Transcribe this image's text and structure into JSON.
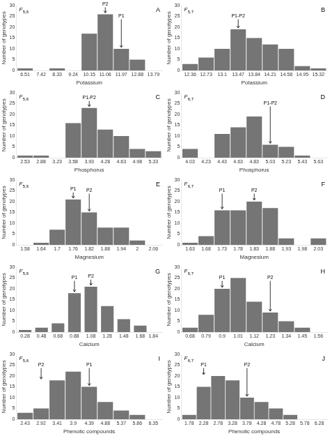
{
  "chart_data": [
    {
      "type": "bar",
      "title": "A",
      "subtitle": "F5,6",
      "xlabel": "Potassium",
      "ylabel": "Number of genotypes",
      "x": [
        6.51,
        7.42,
        8.33,
        9.24,
        10.15,
        11.06,
        11.97,
        12.88,
        13.79
      ],
      "values": [
        1,
        0,
        1,
        0,
        17,
        26,
        10,
        5,
        0
      ],
      "xlim": [
        6.0095,
        14.2905
      ],
      "xticks": [
        6.51,
        7.42,
        8.33,
        9.24,
        10.15,
        11.06,
        11.97,
        12.88,
        13.79
      ],
      "ylim": [
        0,
        30
      ],
      "yticks": [
        0,
        5,
        10,
        15,
        20,
        25,
        30
      ],
      "grid": false,
      "color": "#757575",
      "annotations": [
        {
          "text": "P2",
          "x": 11.06,
          "y": 26
        },
        {
          "text": "P1",
          "x": 11.97,
          "y": 10
        }
      ]
    },
    {
      "type": "bar",
      "title": "B",
      "subtitle": "F5,7",
      "xlabel": "Potassium",
      "ylabel": "Number of genotypes",
      "x": [
        12.36,
        12.73,
        13.1,
        13.47,
        13.84,
        14.21,
        14.58,
        14.95,
        15.32
      ],
      "values": [
        3,
        6,
        10,
        19,
        15,
        12,
        10,
        2,
        1
      ],
      "xlim": [
        12.1565,
        15.5235
      ],
      "xticks": [
        12.36,
        12.73,
        13.1,
        13.47,
        13.84,
        14.21,
        14.58,
        14.95,
        15.32
      ],
      "ylim": [
        0,
        30
      ],
      "yticks": [
        0,
        5,
        10,
        15,
        20,
        25,
        30
      ],
      "grid": false,
      "color": "#757575",
      "annotations": [
        {
          "text": "P1-P2",
          "x": 13.47,
          "y": 19
        }
      ]
    },
    {
      "type": "bar",
      "title": "C",
      "subtitle": "F5,6",
      "xlabel": "Phosphorus",
      "ylabel": "Number of genotypes",
      "x": [
        2.53,
        2.88,
        3.23,
        3.58,
        3.93,
        4.28,
        4.63,
        4.98,
        5.33
      ],
      "values": [
        1,
        1,
        0,
        16,
        23,
        13,
        10,
        4,
        3
      ],
      "xlim": [
        2.3375,
        5.5225
      ],
      "xticks": [
        2.53,
        2.88,
        3.23,
        3.58,
        3.93,
        4.28,
        4.63,
        4.98,
        5.33
      ],
      "ylim": [
        0,
        30
      ],
      "yticks": [
        0,
        5,
        10,
        15,
        20,
        25,
        30
      ],
      "grid": false,
      "color": "#757575",
      "annotations": [
        {
          "text": "P1-P2",
          "x": 3.93,
          "y": 23
        }
      ]
    },
    {
      "type": "bar",
      "title": "D",
      "subtitle": "F6,7",
      "xlabel": "Phosphorus",
      "ylabel": "Number of genotypes",
      "x": [
        4.03,
        4.23,
        4.43,
        4.63,
        4.83,
        5.03,
        5.23,
        5.43,
        5.63
      ],
      "values": [
        4,
        0,
        11,
        14,
        19,
        6,
        5,
        1,
        0
      ],
      "xlim": [
        3.92,
        5.74
      ],
      "xticks": [
        4.03,
        4.23,
        4.43,
        4.63,
        4.83,
        5.03,
        5.23,
        5.43,
        5.63
      ],
      "ylim": [
        0,
        30
      ],
      "yticks": [
        0,
        5,
        10,
        15,
        20,
        25,
        30
      ],
      "grid": false,
      "color": "#757575",
      "annotations": [
        {
          "text": "P1-P2",
          "x": 5.03,
          "y": 6
        }
      ]
    },
    {
      "type": "bar",
      "title": "E",
      "subtitle": "F5,6",
      "xlabel": "Magnesium",
      "ylabel": "Number of genotypes",
      "x": [
        1.58,
        1.64,
        1.7,
        1.76,
        1.82,
        1.88,
        1.94,
        2,
        2.06
      ],
      "values": [
        0,
        1,
        7,
        21,
        15,
        8,
        8,
        2,
        0
      ],
      "xlim": [
        1.547,
        2.093
      ],
      "xticks": [
        1.58,
        1.64,
        1.7,
        1.76,
        1.82,
        1.88,
        1.94,
        2,
        2.06
      ],
      "ylim": [
        0,
        30
      ],
      "yticks": [
        0,
        5,
        10,
        15,
        20,
        25,
        30
      ],
      "grid": false,
      "color": "#757575",
      "annotations": [
        {
          "text": "P1",
          "x": 1.76,
          "y": 21
        },
        {
          "text": "P2",
          "x": 1.82,
          "y": 15
        }
      ]
    },
    {
      "type": "bar",
      "title": "F",
      "subtitle": "F6,7",
      "xlabel": "Magnesium",
      "ylabel": "Number of genotypes",
      "x": [
        1.63,
        1.68,
        1.73,
        1.78,
        1.83,
        1.88,
        1.93,
        1.98,
        2.03
      ],
      "values": [
        1,
        4,
        16,
        16,
        20,
        17,
        3,
        0,
        3
      ],
      "xlim": [
        1.6025,
        2.0575
      ],
      "xticks": [
        1.63,
        1.68,
        1.73,
        1.78,
        1.83,
        1.88,
        1.93,
        1.98,
        2.03
      ],
      "ylim": [
        0,
        30
      ],
      "yticks": [
        0,
        5,
        10,
        15,
        20,
        25,
        30
      ],
      "grid": false,
      "color": "#757575",
      "annotations": [
        {
          "text": "P1",
          "x": 1.73,
          "y": 16
        },
        {
          "text": "P2",
          "x": 1.83,
          "y": 20
        }
      ]
    },
    {
      "type": "bar",
      "title": "G",
      "subtitle": "F5,6",
      "xlabel": "Calcium",
      "ylabel": "Number of genotypes",
      "x": [
        0.28,
        0.48,
        0.68,
        0.88,
        1.08,
        1.28,
        1.48,
        1.68,
        1.84
      ],
      "values": [
        1,
        2,
        4,
        18,
        21,
        12,
        6,
        3,
        0
      ],
      "xlim": [
        0.17275,
        1.94725
      ],
      "xticks": [
        0.28,
        0.48,
        0.68,
        0.88,
        1.08,
        1.28,
        1.48,
        1.68,
        1.84
      ],
      "ylim": [
        0,
        30
      ],
      "yticks": [
        0,
        5,
        10,
        15,
        20,
        25,
        30
      ],
      "grid": false,
      "color": "#757575",
      "annotations": [
        {
          "text": "P1",
          "x": 0.88,
          "y": 18
        },
        {
          "text": "P2",
          "x": 1.08,
          "y": 21
        }
      ]
    },
    {
      "type": "bar",
      "title": "H",
      "subtitle": "F6,7",
      "xlabel": "Calcium",
      "ylabel": "Number of genotypes",
      "x": [
        0.68,
        0.79,
        0.9,
        1.01,
        1.12,
        1.23,
        1.34,
        1.45,
        1.56
      ],
      "values": [
        2,
        8,
        20,
        25,
        14,
        9,
        5,
        2,
        0
      ],
      "xlim": [
        0.6195,
        1.6205
      ],
      "xticks": [
        0.68,
        0.79,
        0.9,
        1.01,
        1.12,
        1.23,
        1.34,
        1.45,
        1.56
      ],
      "ylim": [
        0,
        30
      ],
      "yticks": [
        0,
        5,
        10,
        15,
        20,
        25,
        30
      ],
      "grid": false,
      "color": "#757575",
      "annotations": [
        {
          "text": "P1",
          "x": 0.9,
          "y": 20
        },
        {
          "text": "P2",
          "x": 1.23,
          "y": 9
        }
      ]
    },
    {
      "type": "bar",
      "title": "I",
      "subtitle": "F5,6",
      "xlabel": "Phenolic compounds",
      "ylabel": "Number of genotypes",
      "x": [
        2.43,
        2.92,
        3.41,
        3.9,
        4.39,
        4.88,
        5.37,
        5.86,
        6.35
      ],
      "values": [
        3,
        5,
        18,
        22,
        15,
        8,
        4,
        2,
        0
      ],
      "xlim": [
        2.1605,
        6.6195
      ],
      "xticks": [
        2.43,
        2.92,
        3.41,
        3.9,
        4.39,
        4.88,
        5.37,
        5.86,
        6.35
      ],
      "ylim": [
        0,
        30
      ],
      "yticks": [
        0,
        5,
        10,
        15,
        20,
        25,
        30
      ],
      "grid": false,
      "color": "#757575",
      "annotations": [
        {
          "text": "P2",
          "x": 2.92,
          "y": 18
        },
        {
          "text": "P1",
          "x": 4.39,
          "y": 15
        }
      ]
    },
    {
      "type": "bar",
      "title": "J",
      "subtitle": "F6,7",
      "xlabel": "Phenolic compounds",
      "ylabel": "Number of genotypes",
      "x": [
        1.78,
        2.28,
        2.78,
        3.28,
        3.78,
        4.28,
        4.78,
        5.28,
        5.78,
        6.28
      ],
      "values": [
        2,
        15,
        20,
        18,
        10,
        8,
        5,
        2,
        0,
        0
      ],
      "xlim": [
        1.505,
        6.555
      ],
      "xticks": [
        1.78,
        2.28,
        2.78,
        3.28,
        3.78,
        4.28,
        4.78,
        5.28,
        5.78,
        6.28
      ],
      "ylim": [
        0,
        30
      ],
      "yticks": [
        0,
        5,
        10,
        15,
        20,
        25,
        30
      ],
      "grid": false,
      "color": "#757575",
      "annotations": [
        {
          "text": "P1",
          "x": 2.28,
          "y": 20
        },
        {
          "text": "P2",
          "x": 3.78,
          "y": 10
        }
      ]
    }
  ]
}
